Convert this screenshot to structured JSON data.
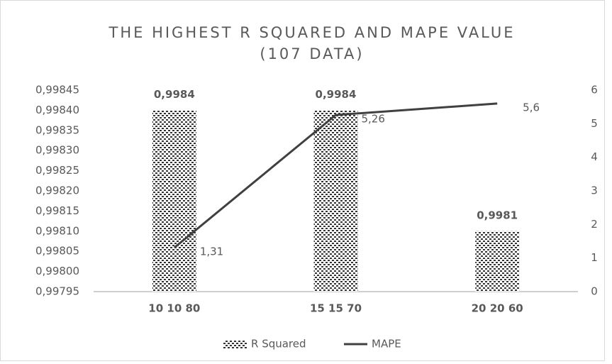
{
  "chart_data": {
    "type": "bar",
    "title": [
      "THE HIGHEST R SQUARED AND MAPE VALUE",
      "(107 DATA)"
    ],
    "categories": [
      "10 10 80",
      "15 15 70",
      "20 20 60"
    ],
    "series": [
      {
        "name": "R Squared",
        "type": "bar",
        "color": "#3a3a3a",
        "values": [
          0.9984,
          0.9984,
          0.9981
        ],
        "value_labels": [
          "0,9984",
          "0,9984",
          "0,9981"
        ]
      },
      {
        "name": "MAPE",
        "type": "line",
        "axis": "y2",
        "color": "#404040",
        "values": [
          1.31,
          5.26,
          5.6
        ],
        "value_labels": [
          "1,31",
          "5,26",
          "5,6"
        ]
      }
    ],
    "ylim": [
      0.99795,
      0.99845
    ],
    "yticks": [
      {
        "value": 0.99795,
        "label": "0,99795"
      },
      {
        "value": 0.998,
        "label": "0,99800"
      },
      {
        "value": 0.99805,
        "label": "0,99805"
      },
      {
        "value": 0.9981,
        "label": "0,99810"
      },
      {
        "value": 0.99815,
        "label": "0,99815"
      },
      {
        "value": 0.9982,
        "label": "0,99820"
      },
      {
        "value": 0.99825,
        "label": "0,99825"
      },
      {
        "value": 0.9983,
        "label": "0,99830"
      },
      {
        "value": 0.99835,
        "label": "0,99835"
      },
      {
        "value": 0.9984,
        "label": "0,99840"
      },
      {
        "value": 0.99845,
        "label": "0,99845"
      }
    ],
    "y2lim": [
      0,
      6
    ],
    "y2ticks": [
      0,
      1,
      2,
      3,
      4,
      5,
      6
    ],
    "grid": false,
    "legend": "bottom"
  }
}
